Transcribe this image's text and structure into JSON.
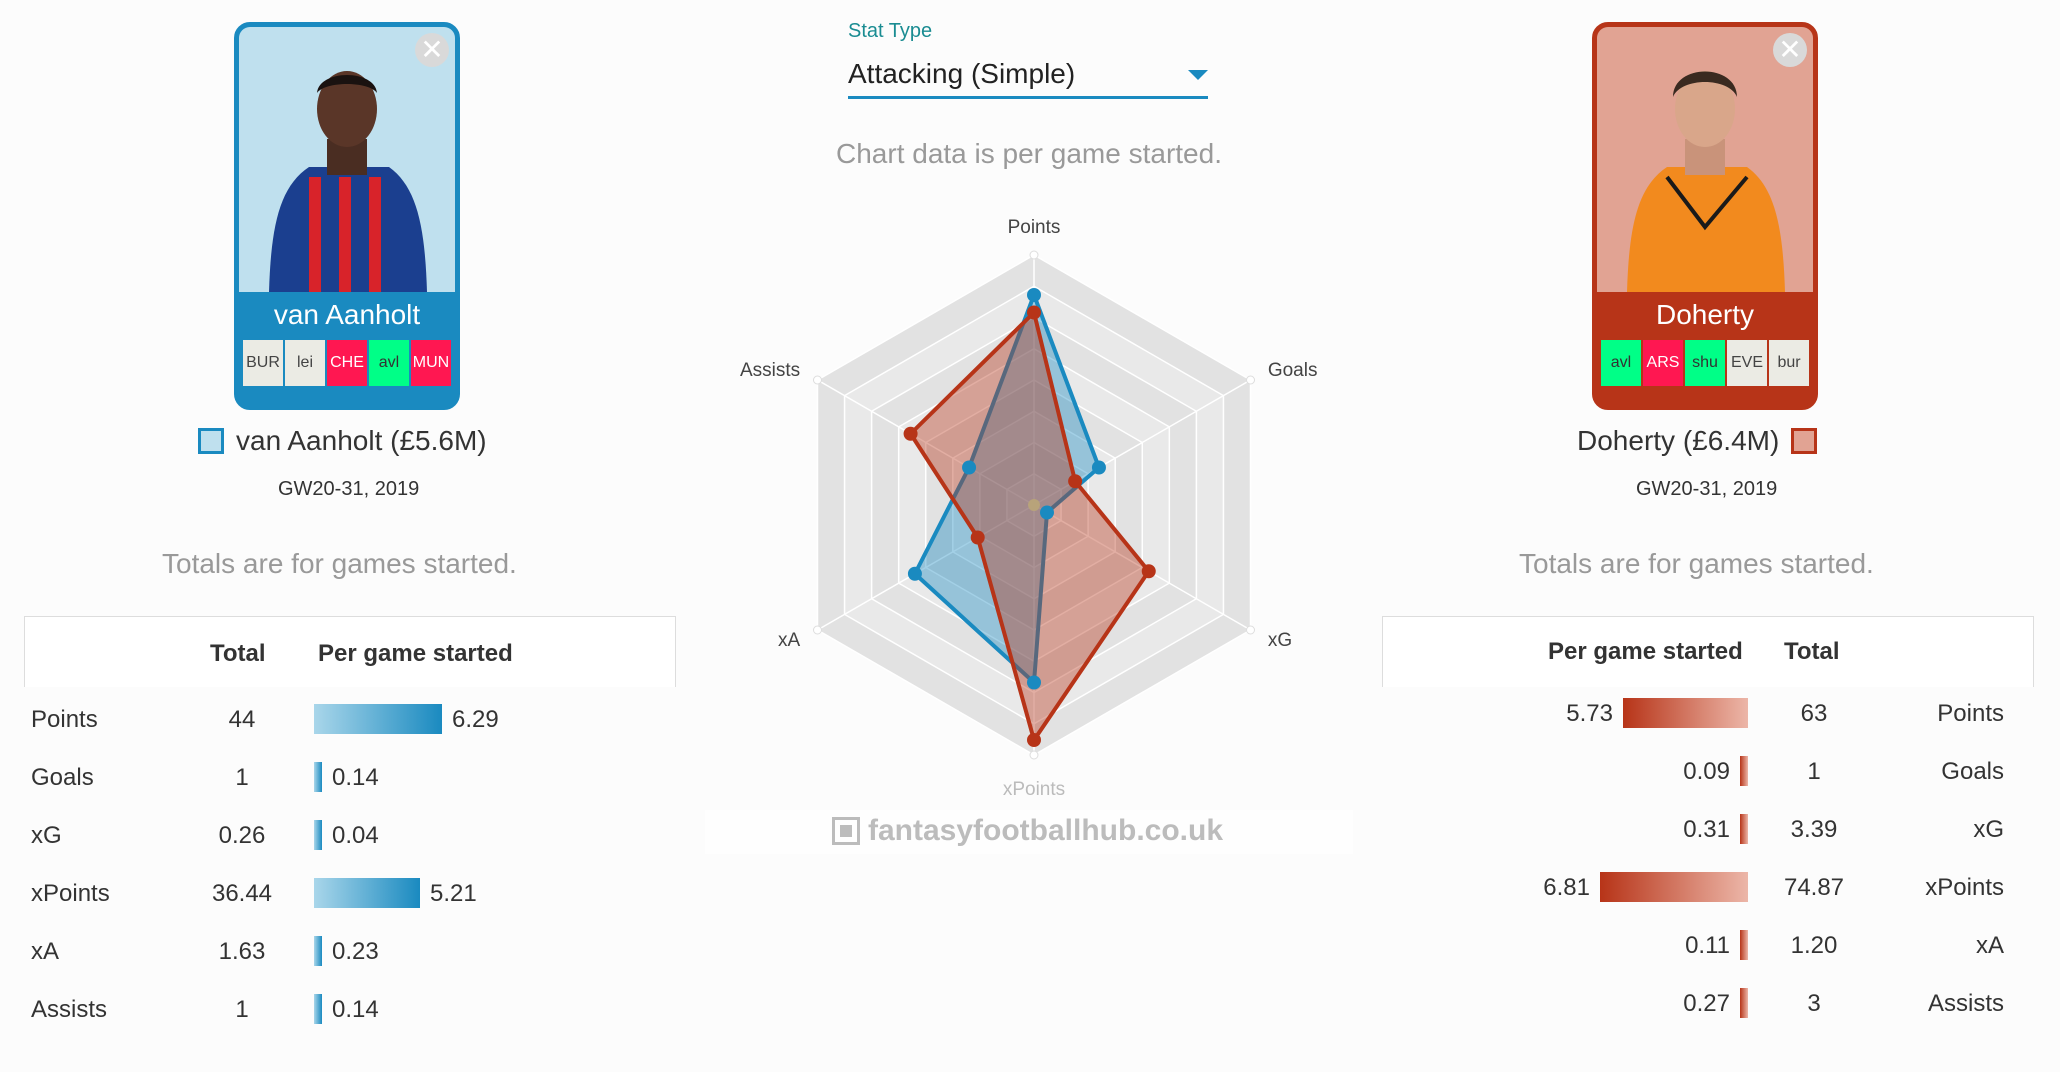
{
  "left_player": {
    "card_name": "van Aanholt",
    "fixtures": [
      "BUR",
      "lei",
      "CHE",
      "avl",
      "MUN"
    ],
    "title": "van Aanholt (£5.6M)",
    "range": "GW20-31, 2019",
    "color": "#1a8ac0",
    "totals_note": "Totals are for games started.",
    "headers": {
      "total": "Total",
      "per_game": "Per game started"
    },
    "stats": [
      {
        "label": "Points",
        "total": "44",
        "per_game": "6.29"
      },
      {
        "label": "Goals",
        "total": "1",
        "per_game": "0.14"
      },
      {
        "label": "xG",
        "total": "0.26",
        "per_game": "0.04"
      },
      {
        "label": "xPoints",
        "total": "36.44",
        "per_game": "5.21"
      },
      {
        "label": "xA",
        "total": "1.63",
        "per_game": "0.23"
      },
      {
        "label": "Assists",
        "total": "1",
        "per_game": "0.14"
      }
    ]
  },
  "right_player": {
    "card_name": "Doherty",
    "fixtures": [
      "avl",
      "ARS",
      "shu",
      "EVE",
      "bur"
    ],
    "title": "Doherty (£6.4M)",
    "range": "GW20-31, 2019",
    "color": "#b73418",
    "totals_note": "Totals are for games started.",
    "headers": {
      "total": "Total",
      "per_game": "Per game started"
    },
    "stats": [
      {
        "label": "Points",
        "total": "63",
        "per_game": "5.73"
      },
      {
        "label": "Goals",
        "total": "1",
        "per_game": "0.09"
      },
      {
        "label": "xG",
        "total": "3.39",
        "per_game": "0.31"
      },
      {
        "label": "xPoints",
        "total": "74.87",
        "per_game": "6.81"
      },
      {
        "label": "xA",
        "total": "1.20",
        "per_game": "0.11"
      },
      {
        "label": "Assists",
        "total": "3",
        "per_game": "0.27"
      }
    ]
  },
  "controls": {
    "stat_type_label": "Stat Type",
    "stat_type_value": "Attacking (Simple)"
  },
  "chart_note": "Chart data is per game started.",
  "watermark": "fantasyfootballhub.co.uk",
  "chart_data": {
    "type": "radar",
    "axes": [
      "Points",
      "Goals",
      "xG",
      "xPoints",
      "xA",
      "Assists"
    ],
    "series": [
      {
        "name": "van Aanholt (£5.6M)",
        "values": [
          6.29,
          0.14,
          0.04,
          5.21,
          0.23,
          0.14
        ],
        "color": "#1a8ac0"
      },
      {
        "name": "Doherty (£6.4M)",
        "values": [
          5.73,
          0.09,
          0.31,
          6.81,
          0.11,
          0.27
        ],
        "color": "#b73418"
      }
    ],
    "normalized": [
      [
        0.84,
        0.3,
        0.06,
        0.71,
        0.55,
        0.3
      ],
      [
        0.77,
        0.19,
        0.53,
        0.94,
        0.26,
        0.57
      ]
    ],
    "grid_levels": 8,
    "grid": true
  }
}
